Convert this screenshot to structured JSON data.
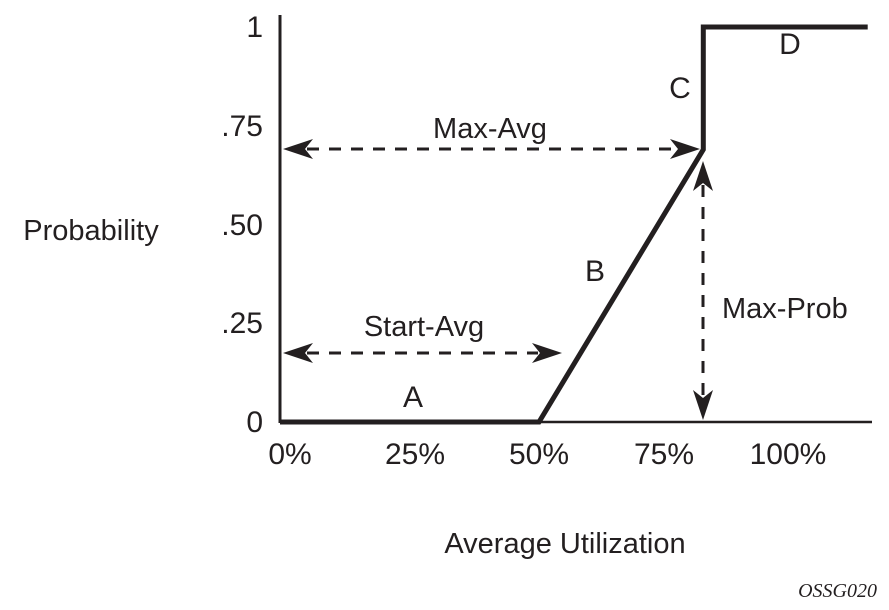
{
  "figure": {
    "code": "OSSG020"
  },
  "chart_data": {
    "type": "line",
    "title": "",
    "xlabel": "Average Utilization",
    "ylabel": "Probability",
    "x_ticks": [
      {
        "label": "0%",
        "pct": 0
      },
      {
        "label": "25%",
        "pct": 25
      },
      {
        "label": "50%",
        "pct": 50
      },
      {
        "label": "75%",
        "pct": 75
      },
      {
        "label": "100%",
        "pct": 100
      }
    ],
    "y_ticks": [
      {
        "label": "0",
        "prob": 0
      },
      {
        "label": ".25",
        "prob": 0.25
      },
      {
        "label": ".50",
        "prob": 0.5
      },
      {
        "label": ".75",
        "prob": 0.75
      },
      {
        "label": "1",
        "prob": 1
      }
    ],
    "xlim_pct": [
      0,
      116
    ],
    "ylim": [
      0,
      1
    ],
    "grid": false,
    "curve": [
      [
        0,
        0
      ],
      [
        50,
        0
      ],
      [
        83,
        0.69
      ],
      [
        83,
        1
      ],
      [
        116,
        1
      ]
    ],
    "segments": [
      "A",
      "B",
      "C",
      "D"
    ],
    "annotations": {
      "start_avg": {
        "label": "Start-Avg",
        "value_pct": 50
      },
      "max_avg": {
        "label": "Max-Avg",
        "value_pct": 83
      },
      "max_prob": {
        "label": "Max-Prob",
        "value_prob": 0.69
      }
    }
  }
}
